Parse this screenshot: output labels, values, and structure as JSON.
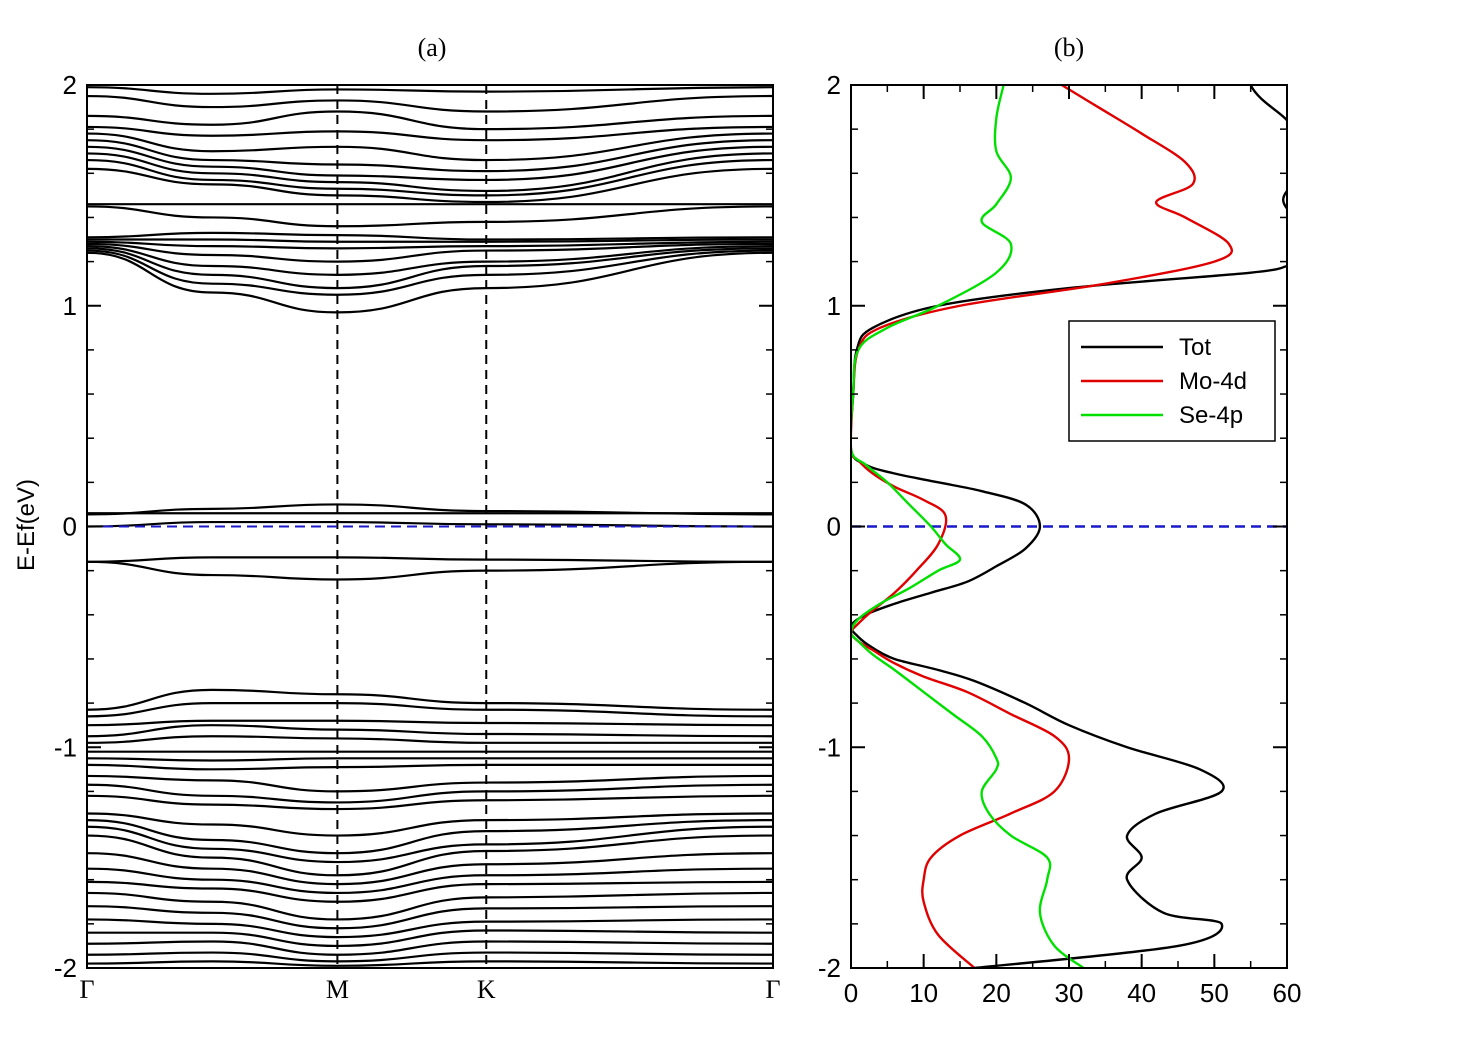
{
  "chart_data": [
    {
      "type": "line",
      "panel": "(a)",
      "title": "(a)",
      "ylabel": "E-Ef(eV)",
      "xlabel": "",
      "ylim": [
        -2,
        2
      ],
      "yticks": [
        {
          "v": 2,
          "label": "2"
        },
        {
          "v": 1,
          "label": "1"
        },
        {
          "v": 0,
          "label": "0"
        },
        {
          "v": -1,
          "label": "-1"
        },
        {
          "v": -2,
          "label": "-2"
        }
      ],
      "kpoints": [
        {
          "label": "Γ",
          "pos": 0.0
        },
        {
          "label": "M",
          "pos": 0.365
        },
        {
          "label": "K",
          "pos": 0.582
        },
        {
          "label": "Γ",
          "pos": 1.0
        }
      ],
      "fermi_level": 0,
      "bands": [
        [
          1.99,
          1.96,
          1.98,
          1.97,
          1.99
        ],
        [
          1.95,
          1.9,
          1.93,
          1.88,
          1.95
        ],
        [
          1.86,
          1.82,
          1.88,
          1.8,
          1.86
        ],
        [
          1.81,
          1.77,
          1.79,
          1.75,
          1.81
        ],
        [
          1.78,
          1.7,
          1.72,
          1.66,
          1.78
        ],
        [
          1.75,
          1.66,
          1.64,
          1.61,
          1.75
        ],
        [
          1.72,
          1.63,
          1.59,
          1.57,
          1.72
        ],
        [
          1.69,
          1.6,
          1.56,
          1.52,
          1.69
        ],
        [
          1.66,
          1.57,
          1.53,
          1.5,
          1.66
        ],
        [
          1.62,
          1.55,
          1.5,
          1.47,
          1.62
        ],
        [
          1.46,
          1.46,
          1.46,
          1.46,
          1.46
        ],
        [
          1.45,
          1.4,
          1.36,
          1.38,
          1.45
        ],
        [
          1.31,
          1.33,
          1.32,
          1.3,
          1.31
        ],
        [
          1.3,
          1.3,
          1.29,
          1.29,
          1.3
        ],
        [
          1.29,
          1.27,
          1.26,
          1.27,
          1.29
        ],
        [
          1.28,
          1.23,
          1.2,
          1.25,
          1.28
        ],
        [
          1.27,
          1.18,
          1.14,
          1.2,
          1.27
        ],
        [
          1.26,
          1.14,
          1.08,
          1.18,
          1.26
        ],
        [
          1.25,
          1.1,
          1.05,
          1.14,
          1.25
        ],
        [
          1.24,
          1.06,
          0.97,
          1.08,
          1.24
        ],
        [
          0.06,
          0.06,
          0.06,
          0.06,
          0.06
        ],
        [
          0.055,
          0.08,
          0.1,
          0.07,
          0.055
        ],
        [
          0.0,
          0.02,
          0.02,
          0.01,
          0.0
        ],
        [
          -0.16,
          -0.14,
          -0.14,
          -0.15,
          -0.16
        ],
        [
          -0.16,
          -0.22,
          -0.24,
          -0.2,
          -0.16
        ],
        [
          -0.83,
          -0.74,
          -0.76,
          -0.8,
          -0.83
        ],
        [
          -0.86,
          -0.8,
          -0.8,
          -0.83,
          -0.86
        ],
        [
          -0.9,
          -0.88,
          -0.88,
          -0.89,
          -0.9
        ],
        [
          -0.95,
          -0.9,
          -0.92,
          -0.94,
          -0.95
        ],
        [
          -0.98,
          -0.95,
          -0.96,
          -0.98,
          -0.98
        ],
        [
          -1.02,
          -1.02,
          -1.02,
          -1.02,
          -1.02
        ],
        [
          -1.05,
          -1.06,
          -1.05,
          -1.05,
          -1.05
        ],
        [
          -1.08,
          -1.1,
          -1.09,
          -1.08,
          -1.08
        ],
        [
          -1.13,
          -1.15,
          -1.2,
          -1.16,
          -1.13
        ],
        [
          -1.17,
          -1.22,
          -1.25,
          -1.2,
          -1.17
        ],
        [
          -1.22,
          -1.26,
          -1.28,
          -1.24,
          -1.22
        ],
        [
          -1.3,
          -1.35,
          -1.4,
          -1.33,
          -1.3
        ],
        [
          -1.33,
          -1.42,
          -1.48,
          -1.38,
          -1.33
        ],
        [
          -1.36,
          -1.46,
          -1.52,
          -1.44,
          -1.36
        ],
        [
          -1.4,
          -1.5,
          -1.58,
          -1.47,
          -1.4
        ],
        [
          -1.48,
          -1.55,
          -1.62,
          -1.53,
          -1.48
        ],
        [
          -1.55,
          -1.6,
          -1.66,
          -1.58,
          -1.55
        ],
        [
          -1.61,
          -1.64,
          -1.7,
          -1.62,
          -1.61
        ],
        [
          -1.66,
          -1.7,
          -1.78,
          -1.68,
          -1.66
        ],
        [
          -1.72,
          -1.75,
          -1.82,
          -1.73,
          -1.72
        ],
        [
          -1.78,
          -1.8,
          -1.86,
          -1.79,
          -1.78
        ],
        [
          -1.84,
          -1.84,
          -1.9,
          -1.83,
          -1.84
        ],
        [
          -1.89,
          -1.88,
          -1.94,
          -1.88,
          -1.89
        ],
        [
          -1.94,
          -1.93,
          -1.97,
          -1.93,
          -1.94
        ],
        [
          -1.98,
          -1.97,
          -1.99,
          -1.97,
          -1.98
        ]
      ]
    },
    {
      "type": "line",
      "panel": "(b)",
      "title": "(b)",
      "xlim": [
        0,
        60
      ],
      "ylim": [
        -2,
        2
      ],
      "xticks": [
        0,
        10,
        20,
        30,
        40,
        50,
        60
      ],
      "yticks": [
        {
          "v": 2,
          "label": "2"
        },
        {
          "v": 1,
          "label": "1"
        },
        {
          "v": 0,
          "label": "0"
        },
        {
          "v": -1,
          "label": "-1"
        },
        {
          "v": -2,
          "label": "-2"
        }
      ],
      "fermi_level": 0,
      "legend": {
        "position": "right-center"
      },
      "series": [
        {
          "name": "Tot",
          "color": "#000000",
          "x": [
            17,
            45,
            51,
            43,
            38,
            40,
            38,
            42,
            51,
            48,
            38,
            30,
            24,
            17,
            12,
            6,
            3,
            1,
            0,
            2,
            6,
            11,
            16,
            20,
            24,
            26,
            24,
            18,
            12,
            6,
            2,
            0,
            0.3,
            0.8,
            3,
            12,
            30,
            55,
            60
          ],
          "y": [
            -2.0,
            -1.9,
            -1.8,
            -1.75,
            -1.6,
            -1.5,
            -1.4,
            -1.3,
            -1.2,
            -1.1,
            -1.0,
            -0.9,
            -0.8,
            -0.7,
            -0.65,
            -0.6,
            -0.55,
            -0.5,
            -0.45,
            -0.4,
            -0.35,
            -0.3,
            -0.25,
            -0.18,
            -0.1,
            0.0,
            0.1,
            0.16,
            0.2,
            0.24,
            0.28,
            0.35,
            0.6,
            0.8,
            0.9,
            1.0,
            1.08,
            1.15,
            1.18
          ]
        },
        {
          "name": "Mo-4d",
          "color": "#e00000",
          "x": [
            17,
            12,
            10,
            10,
            11,
            15,
            22,
            28,
            30,
            28,
            22,
            16,
            10,
            6,
            3,
            1,
            0,
            1,
            3,
            6,
            9,
            12,
            13,
            10,
            6,
            3,
            1,
            0,
            0.3,
            1,
            4,
            15,
            35,
            50,
            52,
            46,
            42,
            47,
            46,
            40,
            34,
            29
          ],
          "y": [
            -2.0,
            -1.85,
            -1.7,
            -1.6,
            -1.5,
            -1.4,
            -1.3,
            -1.2,
            -1.05,
            -0.95,
            -0.85,
            -0.75,
            -0.68,
            -0.62,
            -0.56,
            -0.52,
            -0.48,
            -0.44,
            -0.38,
            -0.3,
            -0.2,
            -0.08,
            0.05,
            0.12,
            0.18,
            0.24,
            0.3,
            0.35,
            0.6,
            0.8,
            0.9,
            1.0,
            1.1,
            1.2,
            1.28,
            1.4,
            1.47,
            1.55,
            1.65,
            1.78,
            1.9,
            2.0
          ]
        },
        {
          "name": "Se-4p",
          "color": "#00e000",
          "x": [
            32,
            28,
            26,
            27,
            27,
            22,
            19,
            18,
            20,
            20,
            18,
            14,
            10,
            6,
            3,
            1,
            0,
            1,
            4,
            8,
            12,
            15,
            13,
            11,
            8,
            5,
            2,
            0,
            0.3,
            1,
            5,
            12,
            20,
            22,
            18,
            20,
            22,
            20,
            20,
            21
          ],
          "y": [
            -2.0,
            -1.9,
            -1.75,
            -1.6,
            -1.5,
            -1.4,
            -1.3,
            -1.2,
            -1.1,
            -1.05,
            -0.95,
            -0.85,
            -0.75,
            -0.65,
            -0.58,
            -0.52,
            -0.48,
            -0.42,
            -0.35,
            -0.28,
            -0.2,
            -0.15,
            -0.08,
            0.0,
            0.1,
            0.2,
            0.28,
            0.35,
            0.6,
            0.8,
            0.9,
            1.0,
            1.15,
            1.28,
            1.38,
            1.46,
            1.58,
            1.7,
            1.85,
            2.0
          ]
        }
      ]
    }
  ]
}
